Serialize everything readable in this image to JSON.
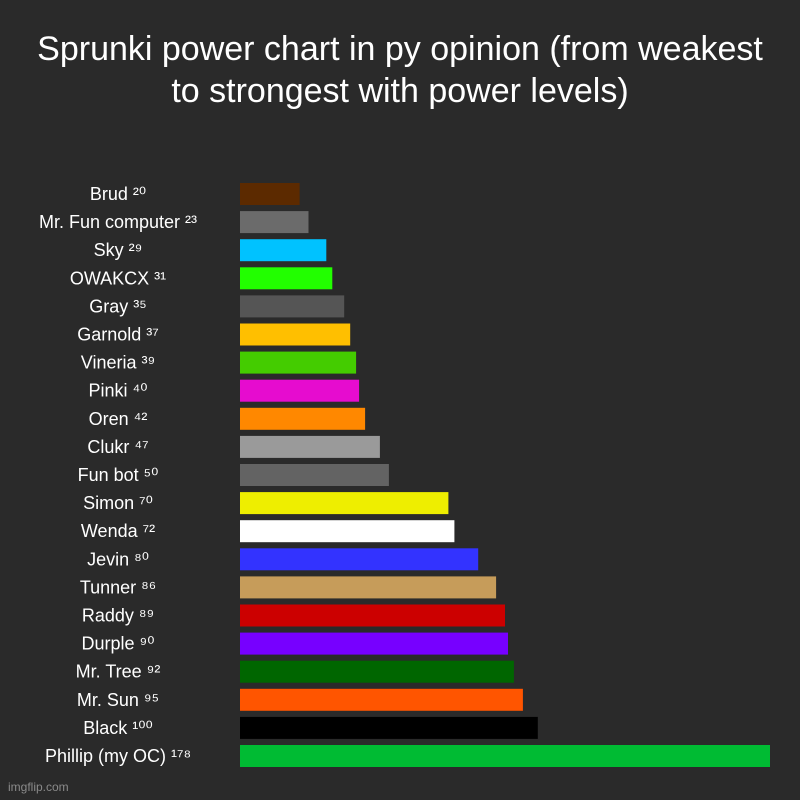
{
  "watermark": "imgflip.com",
  "chart_data": {
    "type": "bar",
    "orientation": "horizontal",
    "title": "Sprunki power chart in py opinion (from weakest to strongest with power levels)",
    "xlabel": "",
    "ylabel": "",
    "grid": false,
    "xlim": [
      0,
      178
    ],
    "background": "#2a2a2a",
    "categories": [
      "Brud ²⁰",
      "Mr. Fun computer ²³",
      "Sky ²⁹",
      "OWAKCX ³¹",
      "Gray ³⁵",
      "Garnold ³⁷",
      "Vineria ³⁹",
      "Pinki ⁴⁰",
      "Oren ⁴²",
      "Clukr ⁴⁷",
      "Fun bot ⁵⁰",
      "Simon ⁷⁰",
      "Wenda ⁷²",
      "Jevin ⁸⁰",
      "Tunner ⁸⁶",
      "Raddy ⁸⁹",
      "Durple ⁹⁰",
      "Mr. Tree ⁹²",
      "Mr. Sun ⁹⁵",
      "Black ¹⁰⁰",
      "Phillip (my OC) ¹⁷⁸"
    ],
    "values": [
      20,
      23,
      29,
      31,
      35,
      37,
      39,
      40,
      42,
      47,
      50,
      70,
      72,
      80,
      86,
      89,
      90,
      92,
      95,
      100,
      178
    ],
    "colors": [
      "#5c2a00",
      "#6b6b6b",
      "#00c2ff",
      "#22ff00",
      "#555555",
      "#ffbf00",
      "#44cc00",
      "#e60ccf",
      "#ff8800",
      "#9a9a9a",
      "#636363",
      "#eeee00",
      "#ffffff",
      "#3333ff",
      "#c69c5a",
      "#cc0000",
      "#7700ff",
      "#006600",
      "#ff5500",
      "#000000",
      "#00bb33"
    ]
  }
}
